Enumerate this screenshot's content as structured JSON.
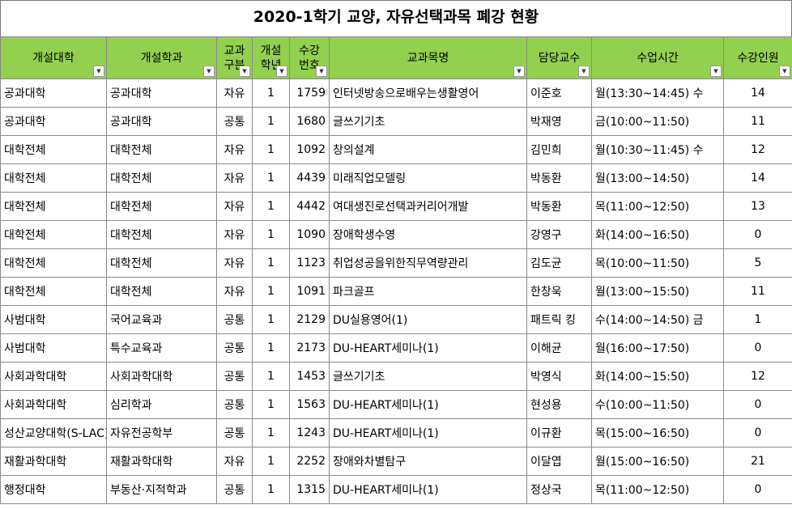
{
  "title": "2020-1학기 교양, 자유선택과목 폐강 현황",
  "table": {
    "columns": [
      "개설대학",
      "개설학과",
      "교과구분",
      "개설학년",
      "수강번호",
      "교과목명",
      "담당교수",
      "수업시간",
      "수강인원"
    ],
    "rows": [
      [
        "공과대학",
        "공과대학",
        "자유",
        "1",
        "1759",
        "인터넷방송으로배우는생활영어",
        "이준호",
        "월(13:30~14:45) 수",
        "14"
      ],
      [
        "공과대학",
        "공과대학",
        "공통",
        "1",
        "1680",
        "글쓰기기초",
        "박재영",
        "금(10:00~11:50)",
        "11"
      ],
      [
        "대학전체",
        "대학전체",
        "자유",
        "1",
        "1092",
        "창의설계",
        "김민희",
        "월(10:30~11:45) 수",
        "12"
      ],
      [
        "대학전체",
        "대학전체",
        "자유",
        "1",
        "4439",
        "미래직업모델링",
        "박동환",
        "월(13:00~14:50)",
        "14"
      ],
      [
        "대학전체",
        "대학전체",
        "자유",
        "1",
        "4442",
        "여대생진로선택과커리어개발",
        "박동환",
        "목(11:00~12:50)",
        "13"
      ],
      [
        "대학전체",
        "대학전체",
        "자유",
        "1",
        "1090",
        "장애학생수영",
        "강영구",
        "화(14:00~16:50)",
        "0"
      ],
      [
        "대학전체",
        "대학전체",
        "자유",
        "1",
        "1123",
        "취업성공을위한직무역량관리",
        "김도균",
        "목(10:00~11:50)",
        "5"
      ],
      [
        "대학전체",
        "대학전체",
        "자유",
        "1",
        "1091",
        "파크골프",
        "한창욱",
        "월(13:00~15:50)",
        "11"
      ],
      [
        "사범대학",
        "국어교육과",
        "공통",
        "1",
        "2129",
        "DU실용영어(1)",
        "패트릭 킹",
        "수(14:00~14:50) 금",
        "1"
      ],
      [
        "사범대학",
        "특수교육과",
        "공통",
        "1",
        "2173",
        "DU-HEART세미나(1)",
        "이해균",
        "월(16:00~17:50)",
        "0"
      ],
      [
        "사회과학대학",
        "사회과학대학",
        "공통",
        "1",
        "1453",
        "글쓰기기초",
        "박영식",
        "화(14:00~15:50)",
        "12"
      ],
      [
        "사회과학대학",
        "심리학과",
        "공통",
        "1",
        "1563",
        "DU-HEART세미나(1)",
        "현성용",
        "수(10:00~11:50)",
        "0"
      ],
      [
        "성산교양대학(S-LAC)",
        "자유전공학부",
        "공통",
        "1",
        "1243",
        "DU-HEART세미나(1)",
        "이규환",
        "목(15:00~16:50)",
        "0"
      ],
      [
        "재활과학대학",
        "재활과학대학",
        "자유",
        "1",
        "2252",
        "장애와차별탐구",
        "이달엽",
        "월(15:00~16:50)",
        "21"
      ],
      [
        "행정대학",
        "부동산·지적학과",
        "공통",
        "1",
        "1315",
        "DU-HEART세미나(1)",
        "정상국",
        "목(11:00~12:50)",
        "0"
      ]
    ]
  }
}
